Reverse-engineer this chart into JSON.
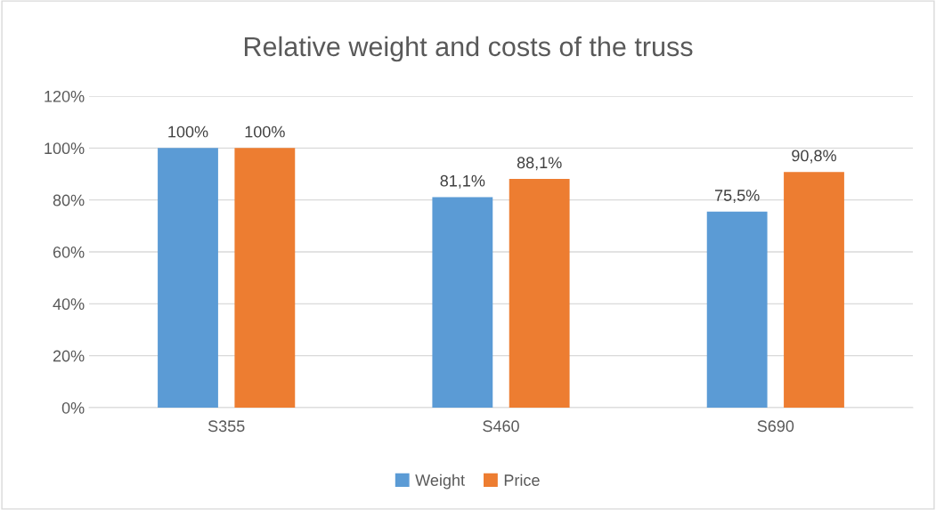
{
  "chart_data": {
    "type": "bar",
    "title": "Relative weight and costs of the truss",
    "categories": [
      "S355",
      "S460",
      "S690"
    ],
    "series": [
      {
        "name": "Weight",
        "color": "#5b9bd5",
        "values": [
          100,
          81.1,
          75.5
        ],
        "value_labels": [
          "100%",
          "81,1%",
          "75,5%"
        ]
      },
      {
        "name": "Price",
        "color": "#ed7d31",
        "values": [
          100,
          88.1,
          90.8
        ],
        "value_labels": [
          "100%",
          "88,1%",
          "90,8%"
        ]
      }
    ],
    "ylim": [
      0,
      120
    ],
    "yticks": [
      {
        "value": 0,
        "label": "0%"
      },
      {
        "value": 20,
        "label": "20%"
      },
      {
        "value": 40,
        "label": "40%"
      },
      {
        "value": 60,
        "label": "60%"
      },
      {
        "value": 80,
        "label": "80%"
      },
      {
        "value": 100,
        "label": "100%"
      },
      {
        "value": 120,
        "label": "120%"
      }
    ],
    "grid": "y",
    "legend": "bottom"
  }
}
